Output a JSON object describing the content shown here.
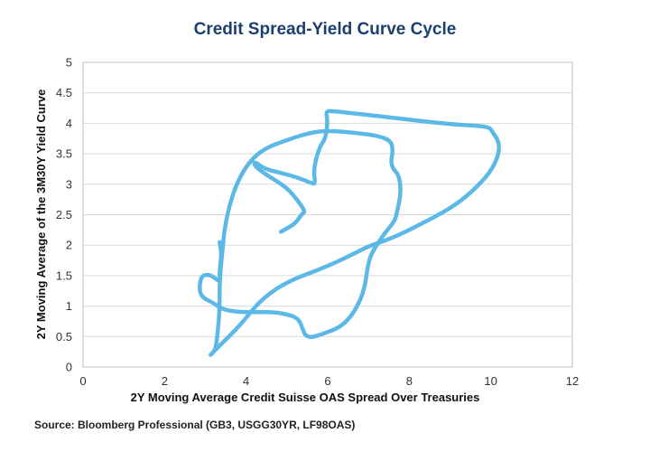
{
  "chart_data": {
    "type": "line",
    "title": "Credit Spread-Yield Curve Cycle",
    "xlabel": "2Y Moving Average Credit Suisse OAS Spread Over Treasuries",
    "ylabel": "2Y Moving Average of the 3M30Y Yield Curve",
    "xlim": [
      0,
      12
    ],
    "ylim": [
      0,
      5
    ],
    "xticks": [
      0,
      2,
      4,
      6,
      8,
      10,
      12
    ],
    "yticks": [
      0,
      0.5,
      1,
      1.5,
      2,
      2.5,
      3,
      3.5,
      4,
      4.5,
      5
    ],
    "grid": "horizontal",
    "color": "#5cb8e6",
    "series": [
      {
        "x": [
          4.85,
          5.2,
          5.35,
          5.45,
          5.3,
          5.0,
          4.5,
          4.2,
          4.2,
          4.45,
          4.9,
          5.3,
          5.6,
          5.7,
          5.65,
          5.8,
          5.95,
          6.0,
          5.95,
          6.15,
          6.8,
          7.5,
          8.5,
          9.3,
          9.95,
          10.05,
          10.2,
          10.2,
          10.0,
          9.5,
          9.0,
          8.3,
          7.6,
          7.0,
          6.7,
          6.3,
          5.8,
          5.3,
          4.9,
          4.6,
          4.3,
          4.05,
          3.8,
          3.5,
          3.2,
          3.1,
          3.25,
          3.3,
          3.35,
          3.35,
          3.4,
          3.5,
          3.8,
          4.3,
          5.1,
          5.6,
          6.0,
          6.6,
          7.2,
          7.55,
          7.6,
          7.55,
          7.6,
          7.75,
          7.8,
          7.7,
          7.65,
          7.4,
          7.1,
          7.0,
          6.95,
          6.9,
          6.8,
          6.6,
          6.3,
          5.9,
          5.6,
          5.45,
          5.4,
          5.3,
          5.1,
          4.7,
          4.2,
          3.8,
          3.4,
          3.2,
          2.9,
          2.85,
          2.9,
          3.1,
          3.25,
          3.35,
          3.35,
          3.4,
          3.35
        ],
        "y": [
          2.22,
          2.35,
          2.5,
          2.55,
          2.7,
          2.95,
          3.15,
          3.3,
          3.38,
          3.25,
          3.18,
          3.1,
          3.02,
          3.0,
          3.25,
          3.62,
          3.75,
          4.05,
          4.2,
          4.2,
          4.15,
          4.1,
          4.02,
          3.97,
          3.95,
          3.85,
          3.7,
          3.5,
          3.2,
          2.85,
          2.6,
          2.35,
          2.12,
          1.98,
          1.88,
          1.75,
          1.6,
          1.48,
          1.35,
          1.22,
          1.05,
          0.85,
          0.65,
          0.45,
          0.25,
          0.18,
          0.28,
          0.55,
          0.95,
          1.4,
          1.8,
          2.45,
          3.1,
          3.55,
          3.75,
          3.85,
          3.88,
          3.85,
          3.8,
          3.72,
          3.55,
          3.38,
          3.25,
          3.15,
          2.85,
          2.55,
          2.4,
          2.2,
          1.9,
          1.72,
          1.5,
          1.3,
          1.1,
          0.85,
          0.65,
          0.55,
          0.48,
          0.52,
          0.6,
          0.78,
          0.85,
          0.9,
          0.9,
          0.9,
          0.95,
          1.05,
          1.15,
          1.3,
          1.5,
          1.52,
          1.45,
          1.4,
          1.6,
          1.85,
          2.05
        ]
      }
    ]
  },
  "source": "Source: Bloomberg Professional (GB3, USGG30YR, LF98OAS)"
}
